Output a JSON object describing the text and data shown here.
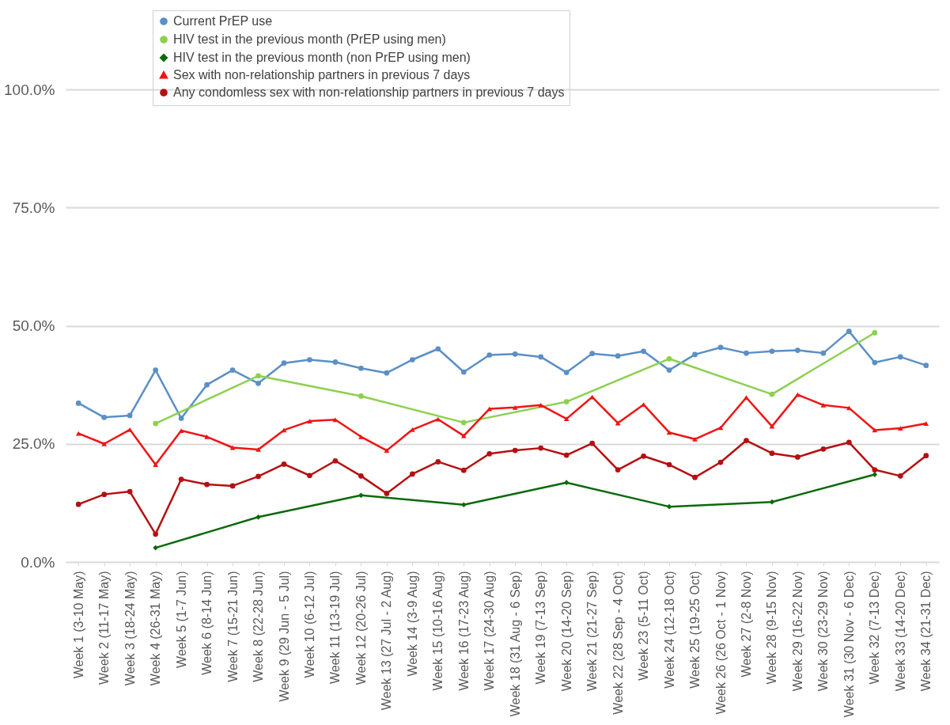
{
  "chart_data": {
    "type": "line",
    "categories": [
      "Week 1 (3-10 May)",
      "Week 2 (11-17 May)",
      "Week 3 (18-24 May)",
      "Week 4 (26-31 May)",
      "Week 5 (1-7 Jun)",
      "Week 6 (8-14 Jun)",
      "Week 7 (15-21 Jun)",
      "Week 8 (22-28 Jun)",
      "Week 9 (29 Jun - 5 Jul)",
      "Week 10 (6-12 Jul)",
      "Week 11 (13-19 Jul)",
      "Week 12 (20-26 Jul)",
      "Week 13 (27 Jul - 2 Aug)",
      "Week 14 (3-9 Aug)",
      "Week 15 (10-16 Aug)",
      "Week 16 (17-23 Aug)",
      "Week 17 (24-30 Aug)",
      "Week 18 (31 Aug - 6 Sep)",
      "Week 19 (7-13 Sep)",
      "Week 20 (14-20 Sep)",
      "Week 21 (21-27 Sep)",
      "Week 22 (28 Sep - 4 Oct)",
      "Week 23 (5-11 Oct)",
      "Week 24 (12-18 Oct)",
      "Week 25 (19-25 Oct)",
      "Week 26 (26 Oct - 1 Nov)",
      "Week 27 (2-8 Nov)",
      "Week 28 (9-15 Nov)",
      "Week 29 (16-22 Nov)",
      "Week 30 (23-29 Nov)",
      "Week 31 (30 Nov - 6 Dec)",
      "Week 32 (7-13 Dec)",
      "Week 33 (14-20 Dec)",
      "Week 34 (21-31 Dec)"
    ],
    "series": [
      {
        "name": "Current PrEP use",
        "color": "#5b8fc5",
        "marker": "circle",
        "values": [
          33.6,
          30.6,
          31.0,
          40.6,
          30.4,
          37.5,
          40.6,
          37.8,
          42.1,
          42.8,
          42.3,
          41.0,
          40.0,
          42.8,
          45.1,
          40.2,
          43.8,
          44.0,
          43.4,
          40.1,
          44.1,
          43.6,
          44.6,
          40.6,
          43.9,
          45.4,
          44.2,
          44.6,
          44.8,
          44.2,
          48.8,
          42.2,
          43.4,
          41.6
        ]
      },
      {
        "name": "HIV test in the previous month (PrEP using men)",
        "color": "#8dd04f",
        "marker": "circle",
        "values": [
          null,
          null,
          null,
          29.3,
          null,
          null,
          null,
          39.4,
          null,
          null,
          null,
          35.1,
          null,
          null,
          null,
          29.5,
          null,
          null,
          null,
          33.9,
          null,
          null,
          null,
          43.0,
          null,
          null,
          null,
          35.5,
          null,
          null,
          null,
          48.5,
          null,
          null
        ]
      },
      {
        "name": "HIV test in the previous month (non PrEP using men)",
        "color": "#0a6a0a",
        "marker": "diamond",
        "values": [
          null,
          null,
          null,
          3.0,
          null,
          null,
          null,
          9.5,
          null,
          null,
          null,
          14.1,
          null,
          null,
          null,
          12.1,
          null,
          null,
          null,
          16.8,
          null,
          null,
          null,
          11.7,
          null,
          null,
          null,
          12.7,
          null,
          null,
          null,
          18.5,
          null,
          null
        ]
      },
      {
        "name": "Sex with non-relationship partners in previous 7 days",
        "color": "#f01414",
        "marker": "triangle",
        "values": [
          27.2,
          25.0,
          28.0,
          20.6,
          27.8,
          26.5,
          24.2,
          23.8,
          27.9,
          29.8,
          30.1,
          26.5,
          23.6,
          28.0,
          30.2,
          26.7,
          32.4,
          32.7,
          33.2,
          30.3,
          34.9,
          29.4,
          33.3,
          27.4,
          26.0,
          28.4,
          34.8,
          28.7,
          35.4,
          33.2,
          32.6,
          27.9,
          28.3,
          29.3
        ]
      },
      {
        "name": "Any condomless sex with non-relationship partners in previous 7 days",
        "color": "#b50f12",
        "marker": "circle",
        "values": [
          12.2,
          14.3,
          14.9,
          5.9,
          17.5,
          16.4,
          16.1,
          18.1,
          20.7,
          18.3,
          21.4,
          18.2,
          14.5,
          18.6,
          21.2,
          19.4,
          22.9,
          23.6,
          24.1,
          22.6,
          25.1,
          19.5,
          22.4,
          20.6,
          17.9,
          21.1,
          25.7,
          23.0,
          22.2,
          23.9,
          25.3,
          19.5,
          18.2,
          22.5
        ]
      }
    ],
    "ylim": [
      0,
      100
    ],
    "yticks": [
      {
        "value": 0,
        "label": "0.0%"
      },
      {
        "value": 25,
        "label": "25.0%"
      },
      {
        "value": 50,
        "label": "50.0%"
      },
      {
        "value": 75,
        "label": "75.0%"
      },
      {
        "value": 100,
        "label": "100.0%"
      }
    ],
    "grid": "y",
    "legend": "top",
    "line_style": "solid"
  }
}
